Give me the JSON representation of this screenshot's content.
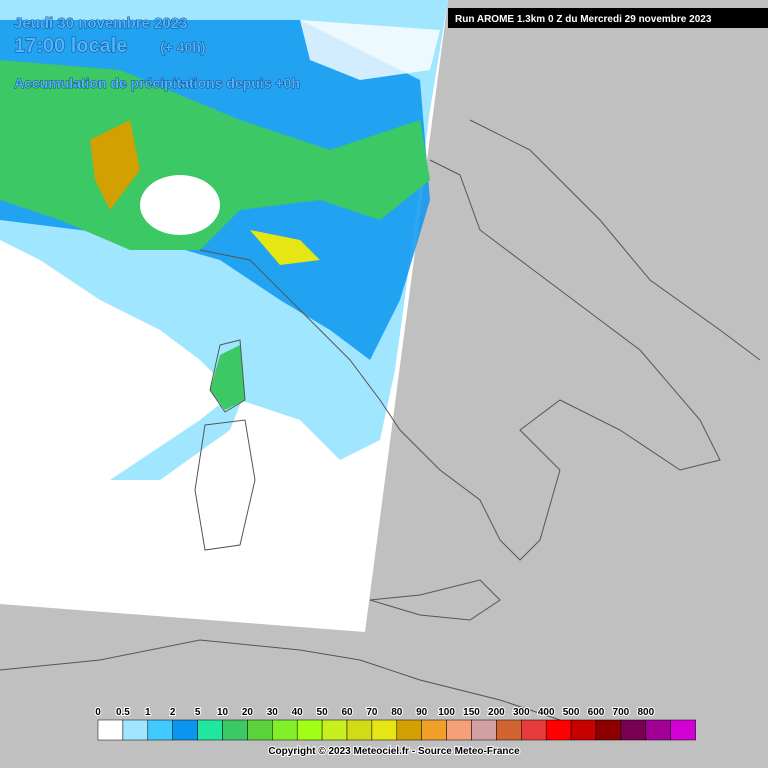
{
  "header": {
    "date": "Jeudi 30 novembre 2023",
    "time": "17:00 locale",
    "lead": "(+ 40h)",
    "subtitle": "Accumulation de précipitations depuis +0h",
    "run": "Run AROME 1.3km 0 Z du Mercredi 29 novembre 2023"
  },
  "legend": {
    "labels": [
      "0",
      "0.5",
      "1",
      "2",
      "5",
      "10",
      "20",
      "30",
      "40",
      "50",
      "60",
      "70",
      "80",
      "90",
      "100",
      "150",
      "200",
      "300",
      "400",
      "500",
      "600",
      "700",
      "800"
    ],
    "colors": [
      "#ffffff",
      "#a0e6ff",
      "#40c8ff",
      "#0a96f0",
      "#20e6a0",
      "#3cc864",
      "#5ad23c",
      "#82f028",
      "#a0ff14",
      "#c8f01e",
      "#d2dc14",
      "#e6e614",
      "#d2a000",
      "#f0a028",
      "#f5a078",
      "#d2a0a0",
      "#d26432",
      "#e63c3c",
      "#ff0000",
      "#c80000",
      "#8c0000",
      "#780050",
      "#a00096",
      "#d200d2"
    ]
  },
  "copyright": "Copyright © 2023 Meteociel.fr - Source Meteo-France"
}
